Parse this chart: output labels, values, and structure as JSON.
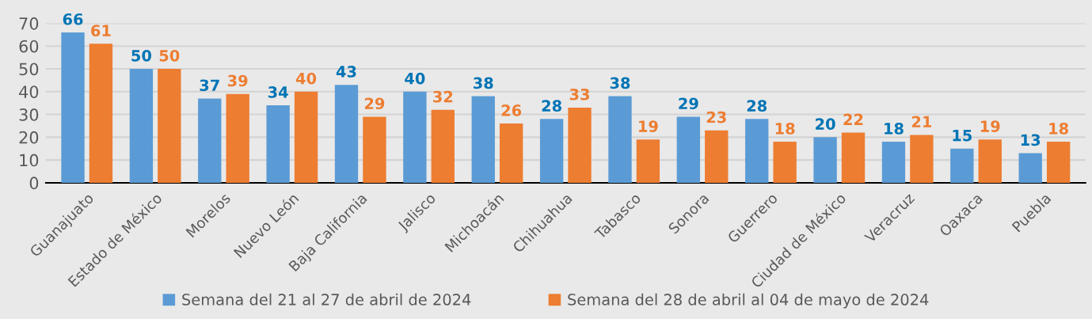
{
  "chart_data": {
    "type": "bar",
    "categories": [
      "Guanajuato",
      "Estado de México",
      "Morelos",
      "Nuevo León",
      "Baja California",
      "Jalisco",
      "Michoacán",
      "Chihuahua",
      "Tabasco",
      "Sonora",
      "Guerrero",
      "Ciudad de México",
      "Veracruz",
      "Oaxaca",
      "Puebla"
    ],
    "series": [
      {
        "name": "Semana del 21 al 27 de abril de 2024",
        "color": "#5b9bd5",
        "values": [
          66,
          50,
          37,
          34,
          43,
          40,
          38,
          28,
          38,
          29,
          28,
          20,
          18,
          15,
          13
        ]
      },
      {
        "name": "Semana del 28 de abril al 04 de mayo de 2024",
        "color": "#ed7d31",
        "values": [
          61,
          50,
          39,
          40,
          29,
          32,
          26,
          33,
          19,
          23,
          18,
          22,
          21,
          19,
          18
        ]
      }
    ],
    "ylim": [
      0,
      70
    ],
    "yticks": [
      0,
      10,
      20,
      30,
      40,
      50,
      60,
      70
    ],
    "grid": "y",
    "legend": "bottom",
    "data_labels": true
  }
}
